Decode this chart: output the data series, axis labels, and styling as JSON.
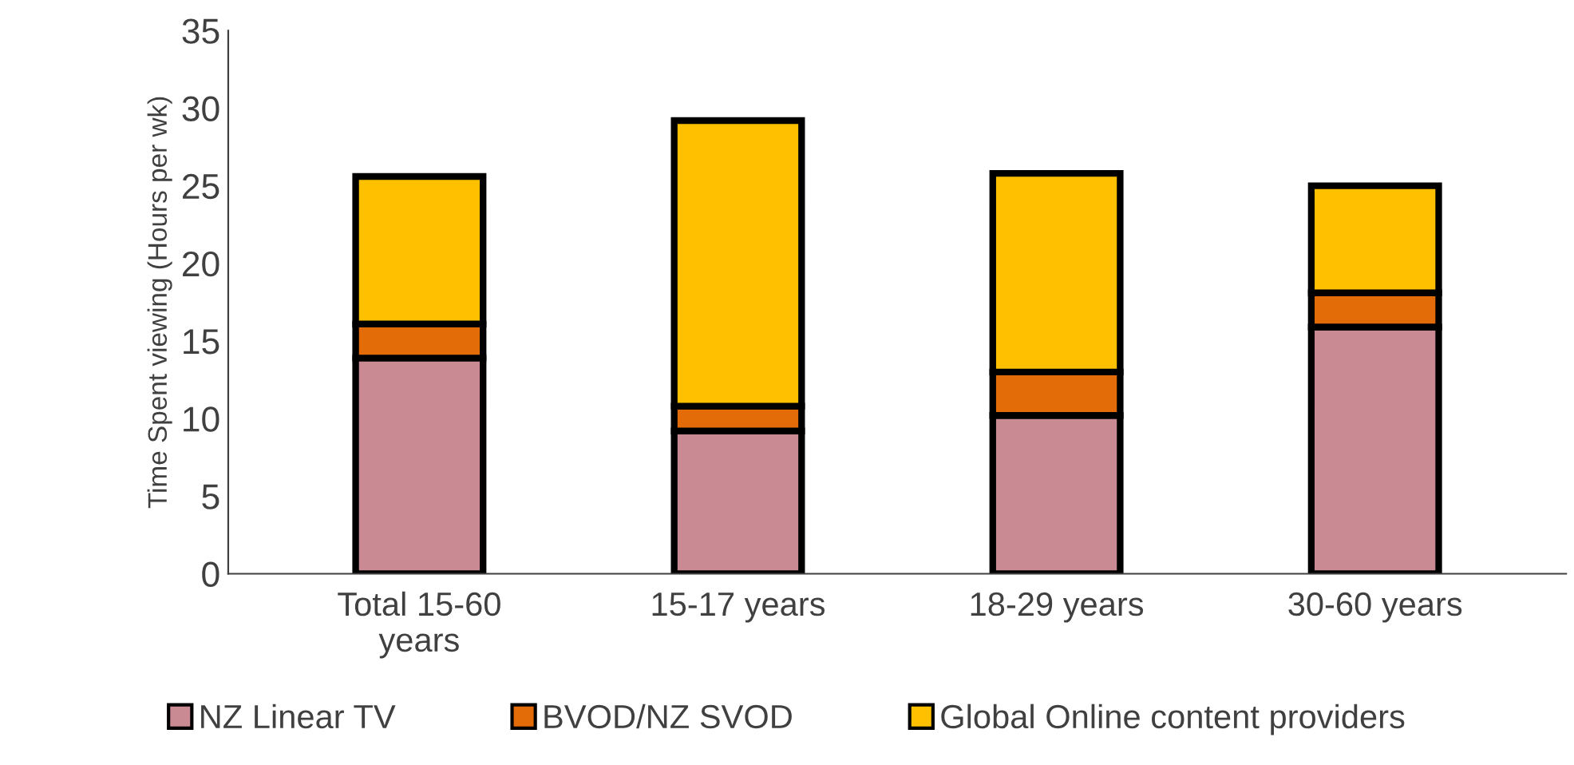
{
  "chart_data": {
    "type": "bar",
    "stacked": true,
    "ylabel": "Time Spent viewing (Hours per wk)",
    "categories": [
      "Total 15-60\nyears",
      "15-17 years",
      "18-29 years",
      "30-60 years"
    ],
    "series": [
      {
        "name": "NZ Linear TV",
        "color": "#c98a94",
        "values": [
          13.9,
          9.2,
          10.2,
          15.9
        ]
      },
      {
        "name": "BVOD/NZ SVOD",
        "color": "#e36c09",
        "values": [
          2.2,
          1.6,
          2.8,
          2.2
        ]
      },
      {
        "name": "Global Online content providers",
        "color": "#ffc000",
        "values": [
          9.5,
          18.4,
          12.8,
          6.9
        ]
      }
    ],
    "ylim": [
      0,
      35
    ],
    "yticks": [
      0,
      5,
      10,
      15,
      20,
      25,
      30,
      35
    ],
    "grid": false,
    "legend": "bottom"
  }
}
